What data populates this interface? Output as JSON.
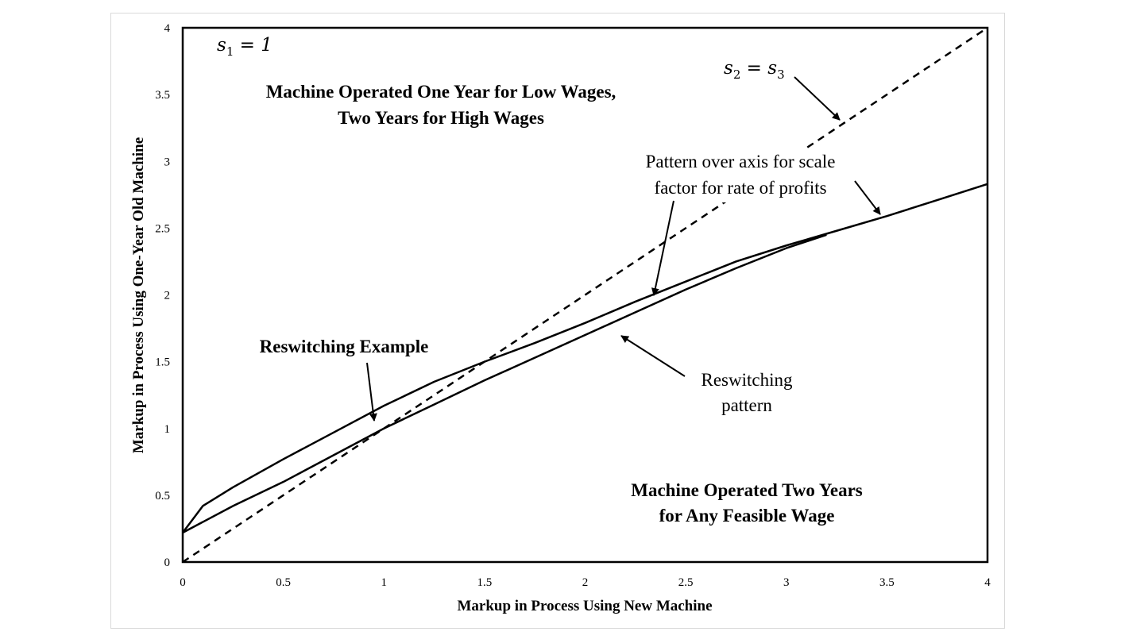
{
  "chart_data": {
    "type": "line",
    "xlabel": "Markup in Process Using New Machine",
    "ylabel": "Markup in Process Using One-Year Old Machine",
    "xlim": [
      0,
      4
    ],
    "ylim": [
      0,
      4
    ],
    "x_ticks": [
      "0",
      "0.5",
      "1",
      "1.5",
      "2",
      "2.5",
      "3",
      "3.5",
      "4"
    ],
    "y_ticks": [
      "0",
      "0.5",
      "1",
      "1.5",
      "2",
      "2.5",
      "3",
      "3.5",
      "4"
    ],
    "grid": false,
    "legend": "none",
    "series": [
      {
        "style": "solid",
        "points": [
          [
            0,
            0.22
          ],
          [
            0.1,
            0.42
          ],
          [
            0.25,
            0.56
          ],
          [
            0.5,
            0.77
          ],
          [
            0.75,
            0.97
          ],
          [
            1.0,
            1.17
          ],
          [
            1.25,
            1.35
          ],
          [
            1.5,
            1.5
          ],
          [
            1.75,
            1.64
          ],
          [
            2.0,
            1.79
          ],
          [
            2.25,
            1.95
          ],
          [
            2.5,
            2.1
          ],
          [
            2.75,
            2.25
          ],
          [
            3.0,
            2.37
          ],
          [
            3.25,
            2.48
          ],
          [
            3.5,
            2.59
          ],
          [
            3.75,
            2.71
          ],
          [
            4.0,
            2.83
          ]
        ]
      },
      {
        "style": "solid",
        "points": [
          [
            0,
            0.22
          ],
          [
            0.25,
            0.42
          ],
          [
            0.5,
            0.6
          ],
          [
            0.75,
            0.8
          ],
          [
            1.0,
            1.0
          ],
          [
            1.25,
            1.18
          ],
          [
            1.5,
            1.36
          ],
          [
            1.75,
            1.53
          ],
          [
            2.0,
            1.7
          ],
          [
            2.25,
            1.87
          ],
          [
            2.5,
            2.04
          ],
          [
            2.75,
            2.2
          ],
          [
            3.0,
            2.35
          ],
          [
            3.2,
            2.45
          ]
        ]
      },
      {
        "style": "dashed",
        "points": [
          [
            0,
            0
          ],
          [
            4,
            4
          ]
        ]
      }
    ],
    "annotations": {
      "s1": {
        "var": "s",
        "sub": "1",
        "rest": " = 1"
      },
      "s2s3": {
        "var": "s",
        "sub": "2",
        "mid": " = s",
        "sub2": "3"
      },
      "region_top_line1": "Machine Operated One Year for Low Wages,",
      "region_top_line2": "Two Years for High Wages",
      "region_bottom_line1": "Machine Operated Two Years",
      "region_bottom_line2": "for Any Feasible Wage",
      "reswitching_example": "Reswitching Example",
      "pattern_line1": "Pattern over axis for scale",
      "pattern_line2": "factor for rate of profits",
      "reswitching_pattern_line1": "Reswitching",
      "reswitching_pattern_line2": "pattern"
    }
  }
}
